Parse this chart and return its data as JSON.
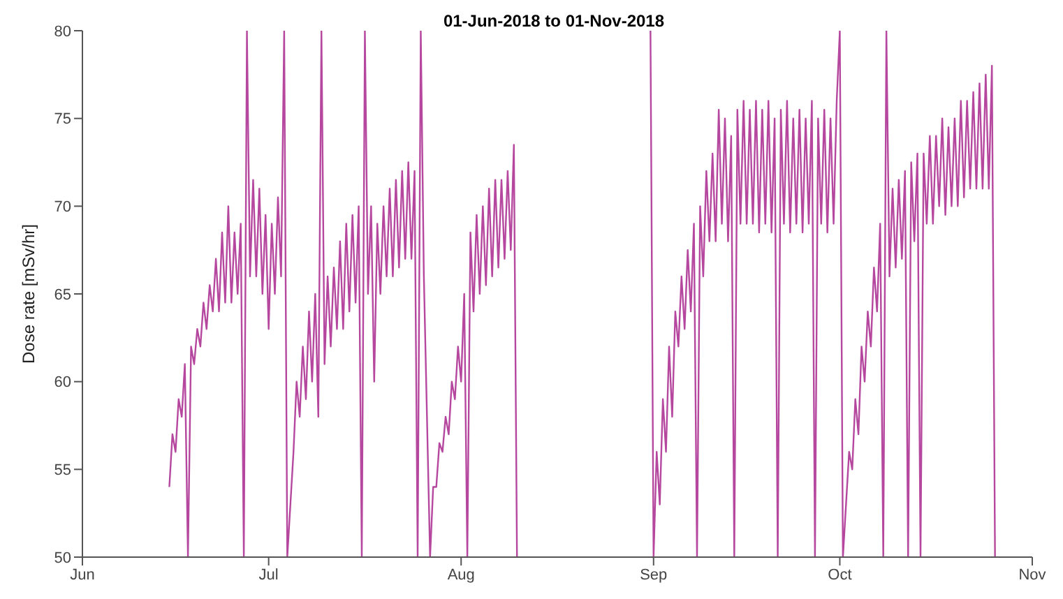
{
  "chart_data": {
    "type": "line",
    "title": "01-Jun-2018 to 01-Nov-2018",
    "ylabel": "Dose rate [mSv/hr]",
    "xlim": [
      "2018-06-01",
      "2018-11-01"
    ],
    "xticks": [
      {
        "value": "2018-06-01",
        "label": "Jun"
      },
      {
        "value": "2018-07-01",
        "label": "Jul"
      },
      {
        "value": "2018-08-01",
        "label": "Aug"
      },
      {
        "value": "2018-09-01",
        "label": "Sep"
      },
      {
        "value": "2018-10-01",
        "label": "Oct"
      },
      {
        "value": "2018-11-01",
        "label": "Nov"
      }
    ],
    "ylim": [
      50,
      80
    ],
    "yticks": [
      50,
      55,
      60,
      65,
      70,
      75,
      80
    ],
    "grid": false,
    "legend": false,
    "marker": "none",
    "line_style": "solid",
    "series": [
      {
        "color": "#b5479f",
        "x": [
          "2018-06-15T00:00",
          "2018-06-15T12:00",
          "2018-06-16T00:00",
          "2018-06-16T12:00",
          "2018-06-17T00:00",
          "2018-06-17T12:00",
          "2018-06-18T00:00",
          "2018-06-18T12:00",
          "2018-06-19T00:00",
          "2018-06-19T12:00",
          "2018-06-20T00:00",
          "2018-06-20T12:00",
          "2018-06-21T00:00",
          "2018-06-21T12:00",
          "2018-06-22T00:00",
          "2018-06-22T12:00",
          "2018-06-23T00:00",
          "2018-06-23T12:00",
          "2018-06-24T00:00",
          "2018-06-24T12:00",
          "2018-06-25T00:00",
          "2018-06-25T12:00",
          "2018-06-26T00:00",
          "2018-06-26T12:00",
          "2018-06-27T00:00",
          "2018-06-27T12:00",
          "2018-06-28T00:00",
          "2018-06-28T12:00",
          "2018-06-29T00:00",
          "2018-06-29T12:00",
          "2018-06-30T00:00",
          "2018-06-30T12:00",
          "2018-07-01T00:00",
          "2018-07-01T12:00",
          "2018-07-02T00:00",
          "2018-07-02T12:00",
          "2018-07-03T00:00",
          "2018-07-03T12:00",
          "2018-07-04T00:00",
          "2018-07-05T00:00",
          "2018-07-05T12:00",
          "2018-07-06T00:00",
          "2018-07-06T12:00",
          "2018-07-07T00:00",
          "2018-07-07T12:00",
          "2018-07-08T00:00",
          "2018-07-08T12:00",
          "2018-07-09T00:00",
          "2018-07-09T12:00",
          "2018-07-10T00:00",
          "2018-07-10T12:00",
          "2018-07-11T00:00",
          "2018-07-11T12:00",
          "2018-07-12T00:00",
          "2018-07-12T12:00",
          "2018-07-13T00:00",
          "2018-07-13T12:00",
          "2018-07-14T00:00",
          "2018-07-14T12:00",
          "2018-07-15T00:00",
          "2018-07-15T12:00",
          "2018-07-16T00:00",
          "2018-07-16T12:00",
          "2018-07-17T00:00",
          "2018-07-17T12:00",
          "2018-07-18T00:00",
          "2018-07-18T12:00",
          "2018-07-19T00:00",
          "2018-07-19T12:00",
          "2018-07-20T00:00",
          "2018-07-20T12:00",
          "2018-07-21T00:00",
          "2018-07-21T12:00",
          "2018-07-22T00:00",
          "2018-07-22T12:00",
          "2018-07-23T00:00",
          "2018-07-23T12:00",
          "2018-07-24T00:00",
          "2018-07-24T12:00",
          "2018-07-25T00:00",
          "2018-07-25T12:00",
          "2018-07-26T00:00",
          "2018-07-27T00:00",
          "2018-07-27T12:00",
          "2018-07-28T00:00",
          "2018-07-28T12:00",
          "2018-07-29T00:00",
          "2018-07-29T12:00",
          "2018-07-30T00:00",
          "2018-07-30T12:00",
          "2018-07-31T00:00",
          "2018-07-31T12:00",
          "2018-08-01T00:00",
          "2018-08-01T12:00",
          "2018-08-02T00:00",
          "2018-08-02T12:00",
          "2018-08-03T00:00",
          "2018-08-03T12:00",
          "2018-08-04T00:00",
          "2018-08-04T12:00",
          "2018-08-05T00:00",
          "2018-08-05T12:00",
          "2018-08-06T00:00",
          "2018-08-06T12:00",
          "2018-08-07T00:00",
          "2018-08-07T12:00",
          "2018-08-08T00:00",
          "2018-08-08T12:00",
          "2018-08-09T00:00",
          "2018-08-09T12:00",
          "2018-08-10T00:00",
          "2018-08-20T00:00",
          "2018-08-31T12:00",
          "2018-09-01T00:00",
          "2018-09-01T12:00",
          "2018-09-02T00:00",
          "2018-09-02T12:00",
          "2018-09-03T00:00",
          "2018-09-03T12:00",
          "2018-09-04T00:00",
          "2018-09-04T12:00",
          "2018-09-05T00:00",
          "2018-09-05T12:00",
          "2018-09-06T00:00",
          "2018-09-06T12:00",
          "2018-09-07T00:00",
          "2018-09-07T12:00",
          "2018-09-08T00:00",
          "2018-09-08T12:00",
          "2018-09-09T00:00",
          "2018-09-09T12:00",
          "2018-09-10T00:00",
          "2018-09-10T12:00",
          "2018-09-11T00:00",
          "2018-09-11T12:00",
          "2018-09-12T00:00",
          "2018-09-12T12:00",
          "2018-09-13T00:00",
          "2018-09-13T12:00",
          "2018-09-14T00:00",
          "2018-09-14T12:00",
          "2018-09-15T00:00",
          "2018-09-15T12:00",
          "2018-09-16T00:00",
          "2018-09-16T12:00",
          "2018-09-17T00:00",
          "2018-09-17T12:00",
          "2018-09-18T00:00",
          "2018-09-18T12:00",
          "2018-09-19T00:00",
          "2018-09-19T12:00",
          "2018-09-20T00:00",
          "2018-09-20T12:00",
          "2018-09-21T00:00",
          "2018-09-21T12:00",
          "2018-09-22T00:00",
          "2018-09-22T12:00",
          "2018-09-23T00:00",
          "2018-09-23T12:00",
          "2018-09-24T00:00",
          "2018-09-24T12:00",
          "2018-09-25T00:00",
          "2018-09-25T12:00",
          "2018-09-26T00:00",
          "2018-09-26T12:00",
          "2018-09-27T00:00",
          "2018-09-27T12:00",
          "2018-09-28T00:00",
          "2018-09-28T12:00",
          "2018-09-29T00:00",
          "2018-09-29T12:00",
          "2018-09-30T00:00",
          "2018-09-30T12:00",
          "2018-10-01T00:00",
          "2018-10-01T12:00",
          "2018-10-02T00:00",
          "2018-10-02T12:00",
          "2018-10-03T00:00",
          "2018-10-03T12:00",
          "2018-10-04T00:00",
          "2018-10-04T12:00",
          "2018-10-05T00:00",
          "2018-10-05T12:00",
          "2018-10-06T00:00",
          "2018-10-06T12:00",
          "2018-10-07T00:00",
          "2018-10-07T12:00",
          "2018-10-08T00:00",
          "2018-10-08T12:00",
          "2018-10-09T00:00",
          "2018-10-09T12:00",
          "2018-10-10T00:00",
          "2018-10-10T12:00",
          "2018-10-11T00:00",
          "2018-10-11T12:00",
          "2018-10-12T00:00",
          "2018-10-12T12:00",
          "2018-10-13T00:00",
          "2018-10-13T12:00",
          "2018-10-14T00:00",
          "2018-10-14T12:00",
          "2018-10-15T00:00",
          "2018-10-15T12:00",
          "2018-10-16T00:00",
          "2018-10-16T12:00",
          "2018-10-17T00:00",
          "2018-10-17T12:00",
          "2018-10-18T00:00",
          "2018-10-18T12:00",
          "2018-10-19T00:00",
          "2018-10-19T12:00",
          "2018-10-20T00:00",
          "2018-10-20T12:00",
          "2018-10-21T00:00",
          "2018-10-21T12:00",
          "2018-10-22T00:00",
          "2018-10-22T12:00",
          "2018-10-23T00:00",
          "2018-10-23T12:00",
          "2018-10-24T00:00",
          "2018-10-24T12:00",
          "2018-10-25T00:00",
          "2018-10-25T12:00",
          "2018-10-26T00:00"
        ],
        "values": [
          54,
          57,
          56,
          59,
          58,
          61,
          50,
          62,
          61,
          63,
          62,
          64.5,
          63,
          65.5,
          64,
          67,
          64,
          68.5,
          64.5,
          70,
          64.5,
          68.5,
          65,
          69,
          50,
          80,
          66,
          71.5,
          66,
          71,
          65,
          69.5,
          63,
          69,
          65,
          70.5,
          66,
          80,
          50,
          56,
          60,
          58,
          62,
          59,
          64,
          60,
          65,
          58,
          80,
          61,
          66,
          62,
          66.5,
          63,
          68,
          63,
          69,
          64,
          69.5,
          64.5,
          70,
          50,
          80,
          65,
          70,
          60,
          69,
          65,
          70,
          66,
          71,
          66,
          71.5,
          66.5,
          72,
          67,
          72.5,
          67,
          72,
          50,
          80,
          66,
          50,
          54,
          54,
          56.5,
          56,
          58,
          57,
          60,
          59,
          62,
          60,
          65,
          50,
          68.5,
          64,
          69.5,
          65,
          70,
          65.5,
          71,
          66,
          71.5,
          66.5,
          71.5,
          67,
          72,
          67.5,
          73.5,
          50,
          null,
          80,
          50,
          56,
          53,
          59,
          56,
          62,
          58,
          64,
          62,
          66,
          63,
          67.5,
          64,
          69,
          50,
          70,
          66,
          72,
          68,
          73,
          68,
          75.5,
          69,
          75,
          68,
          74,
          50,
          75.5,
          69,
          76,
          69,
          75.5,
          69,
          76,
          68.5,
          75.5,
          69,
          76,
          68.5,
          75,
          50,
          75.5,
          69,
          76,
          68.5,
          75,
          69,
          75.5,
          68.5,
          75,
          69,
          76,
          50,
          75,
          69,
          75.5,
          68.5,
          75,
          69,
          76,
          80,
          50,
          53,
          56,
          55,
          59,
          57,
          62,
          60,
          64,
          62,
          66.5,
          64,
          69,
          50,
          80,
          66,
          71,
          66.5,
          71.5,
          67,
          72,
          50,
          72.5,
          68,
          73,
          50,
          73,
          69,
          74,
          69,
          74,
          70,
          75,
          69.5,
          74.5,
          70,
          75,
          70,
          76,
          70.5,
          76,
          71,
          76.5,
          71,
          77,
          71,
          77.5,
          71,
          78,
          50
        ]
      }
    ]
  }
}
